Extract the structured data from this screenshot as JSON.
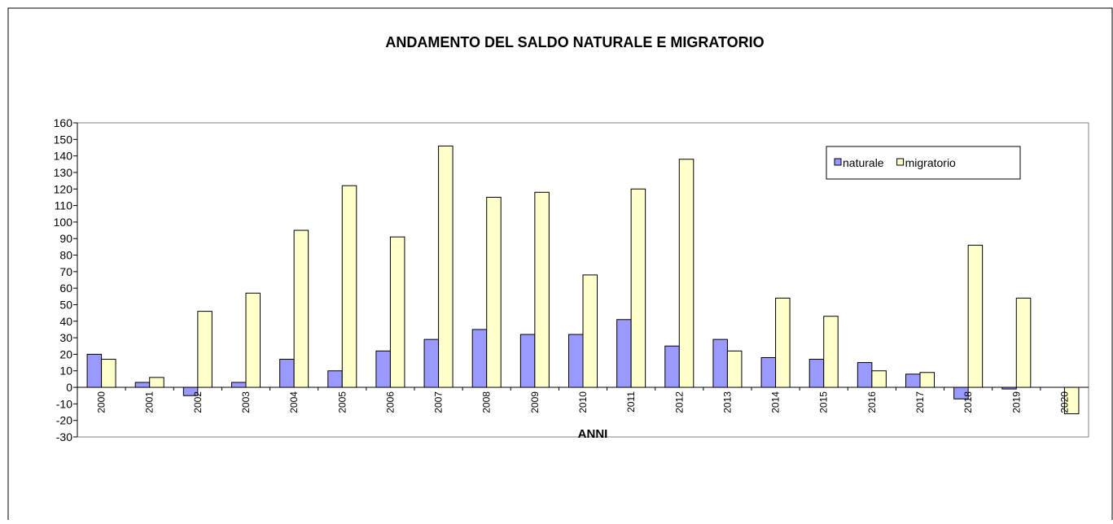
{
  "chart_data": {
    "type": "bar",
    "title": "ANDAMENTO  DEL SALDO NATURALE  E MIGRATORIO",
    "x_label": "ANNI",
    "categories": [
      "2000",
      "2001",
      "2002",
      "2003",
      "2004",
      "2005",
      "2006",
      "2007",
      "2008",
      "2009",
      "2010",
      "2011",
      "2012",
      "2013",
      "2014",
      "2015",
      "2016",
      "2017",
      "2018",
      "2019",
      "2020"
    ],
    "series": [
      {
        "name": "naturale",
        "color": "#9999ff",
        "values": [
          20,
          3,
          -5,
          3,
          17,
          10,
          22,
          29,
          35,
          32,
          32,
          41,
          25,
          29,
          18,
          17,
          15,
          8,
          -7,
          -1,
          0
        ]
      },
      {
        "name": "migratorio",
        "color": "#ffffcc",
        "values": [
          17,
          6,
          46,
          57,
          95,
          122,
          91,
          146,
          115,
          118,
          68,
          120,
          138,
          22,
          54,
          43,
          10,
          9,
          86,
          54,
          -16
        ]
      }
    ],
    "ylim": [
      -30,
      160
    ],
    "yticks": [
      -30,
      -20,
      -10,
      0,
      10,
      20,
      30,
      40,
      50,
      60,
      70,
      80,
      90,
      100,
      110,
      120,
      130,
      140,
      150,
      160
    ],
    "legend": "top-right"
  }
}
